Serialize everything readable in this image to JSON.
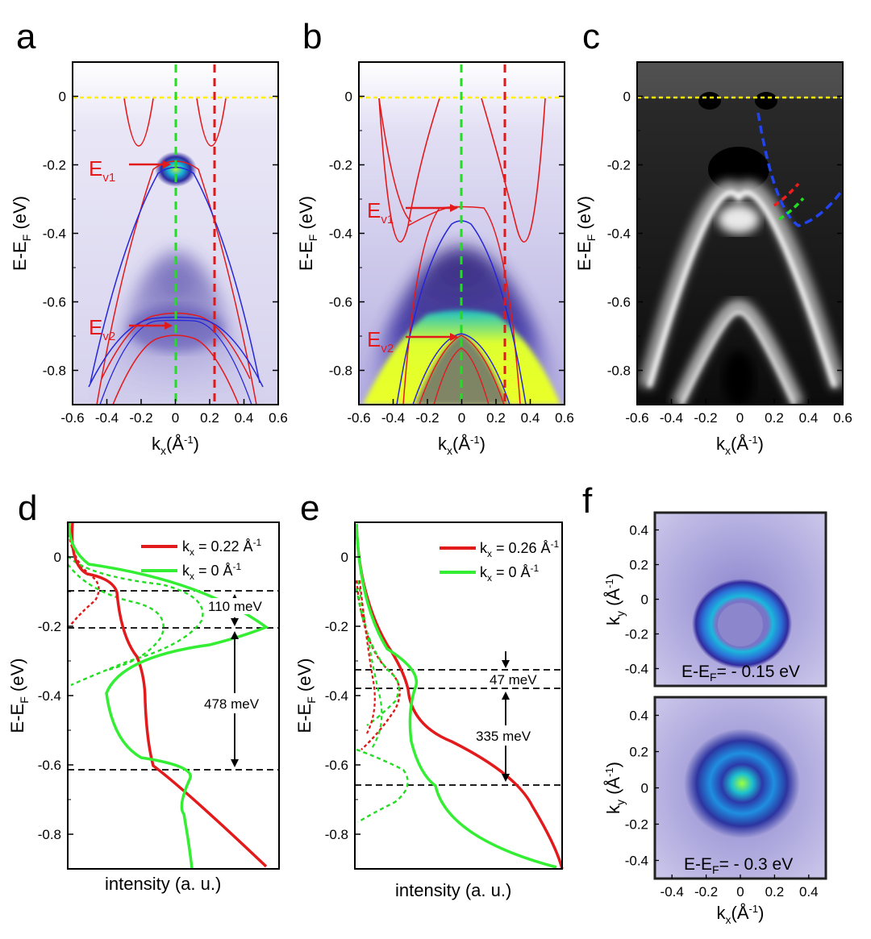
{
  "figure": {
    "panel_letters": [
      "a",
      "b",
      "c",
      "d",
      "e",
      "f"
    ],
    "top_row": {
      "ylabel_main": "E-E",
      "ylabel_sub": "F",
      "ylabel_unit": "(eV)",
      "xlabel_main": "k",
      "xlabel_sub": "x",
      "xlabel_unit_base": "(Å",
      "xlabel_unit_exp": "-1",
      "xlabel_unit_close": ")",
      "y_ticks": [
        "0",
        "-0.2",
        "-0.4",
        "-0.6",
        "-0.8"
      ],
      "x_ticks": [
        "-0.6",
        "-0.4",
        "-0.2",
        "0",
        "0.2",
        "0.4",
        "0.6"
      ]
    },
    "panel_a": {
      "ev1_main": "E",
      "ev1_sub": "v1",
      "ev2_main": "E",
      "ev2_sub": "v2"
    },
    "panel_b": {
      "ev1_main": "E",
      "ev1_sub": "v1",
      "ev2_main": "E",
      "ev2_sub": "v2"
    },
    "panel_d": {
      "ylabel_main": "E-E",
      "ylabel_sub": "F",
      "ylabel_unit": "(eV)",
      "xlabel": "intensity (a. u.)",
      "y_ticks": [
        "0",
        "-0.2",
        "-0.4",
        "-0.6",
        "-0.8"
      ],
      "legend": [
        {
          "main": "k",
          "sub": "x",
          "rest": " = 0.22  Å",
          "exp": "-1",
          "color": "#e31a1c"
        },
        {
          "main": "k",
          "sub": "x",
          "rest": " = 0 Å",
          "exp": "-1",
          "color": "#2ee02e"
        }
      ],
      "annotations": [
        "110 meV",
        "478 meV"
      ]
    },
    "panel_e": {
      "ylabel_main": "E-E",
      "ylabel_sub": "F",
      "ylabel_unit": "(eV)",
      "xlabel": "intensity (a. u.)",
      "y_ticks": [
        "0",
        "-0.2",
        "-0.4",
        "-0.6",
        "-0.8"
      ],
      "legend": [
        {
          "main": "k",
          "sub": "x",
          "rest": " = 0.26 Å",
          "exp": "-1",
          "color": "#e31a1c"
        },
        {
          "main": "k",
          "sub": "x",
          "rest": " = 0 Å",
          "exp": "-1",
          "color": "#2ee02e"
        }
      ],
      "annotations": [
        "47 meV",
        "335 meV"
      ]
    },
    "panel_f": {
      "ylabel_main": "k",
      "ylabel_sub": "y",
      "ylabel_unit_base": "(Å",
      "ylabel_unit_exp": "-1",
      "ylabel_unit_close": ")",
      "xlabel_main": "k",
      "xlabel_sub": "x",
      "xlabel_unit_base": "(Å",
      "xlabel_unit_exp": "-1",
      "xlabel_unit_close": ")",
      "y_ticks": [
        "0.4",
        "0.2",
        "0",
        "-0.2",
        "-0.4"
      ],
      "x_ticks": [
        "-0.4",
        "-0.2",
        "0",
        "0.2",
        "0.4"
      ],
      "top_caption": {
        "main": "E-E",
        "sub": "F",
        "rest": "= - 0.15 eV"
      },
      "bottom_caption": {
        "main": "E-E",
        "sub": "F",
        "rest": "= - 0.3 eV"
      }
    },
    "colors": {
      "band_red": "#e31a1c",
      "band_blue": "#2626d9",
      "green_dash": "#22dd22",
      "red_dash": "#e01818",
      "fermi_yellow": "#ffee00",
      "arpes_bg": "#e4e2f4",
      "arpes_dark": "#2b1d6e",
      "hot_yellow": "#e6ff2a"
    }
  },
  "chart_data": [
    {
      "type": "line",
      "panel": "d",
      "ylim": [
        -0.9,
        0.1
      ],
      "series": [
        {
          "name": "k_x = 0.22 Å^-1 (solid)",
          "values": [
            [
              0.0,
              0.0
            ],
            [
              0.05,
              -0.1
            ],
            [
              0.1,
              -0.15
            ],
            [
              0.25,
              -0.34
            ],
            [
              0.3,
              -0.5
            ],
            [
              0.35,
              -0.65
            ],
            [
              0.6,
              -0.8
            ],
            [
              1.0,
              -0.9
            ]
          ]
        },
        {
          "name": "k_x = 0 Å^-1 (solid)",
          "values": [
            [
              0.0,
              0.0
            ],
            [
              0.55,
              -0.13
            ],
            [
              0.92,
              -0.19
            ],
            [
              0.45,
              -0.3
            ],
            [
              0.25,
              -0.5
            ],
            [
              0.55,
              -0.67
            ],
            [
              0.45,
              -0.77
            ],
            [
              0.55,
              -0.9
            ]
          ]
        }
      ],
      "reference_lines_eV": [
        -0.098,
        -0.208,
        -0.686
      ]
    },
    {
      "type": "line",
      "panel": "e",
      "ylim": [
        -0.9,
        0.1
      ],
      "series": [
        {
          "name": "k_x = 0.26 Å^-1 (solid)",
          "values": [
            [
              0.0,
              0.0
            ],
            [
              0.12,
              -0.2
            ],
            [
              0.25,
              -0.36
            ],
            [
              0.35,
              -0.5
            ],
            [
              0.72,
              -0.66
            ],
            [
              1.0,
              -0.9
            ]
          ]
        },
        {
          "name": "k_x = 0 Å^-1 (solid)",
          "values": [
            [
              0.0,
              0.0
            ],
            [
              0.12,
              -0.22
            ],
            [
              0.28,
              -0.34
            ],
            [
              0.18,
              -0.52
            ],
            [
              0.38,
              -0.66
            ],
            [
              1.0,
              -0.9
            ]
          ]
        }
      ],
      "reference_lines_eV": [
        -0.325,
        -0.372,
        -0.707
      ]
    }
  ]
}
